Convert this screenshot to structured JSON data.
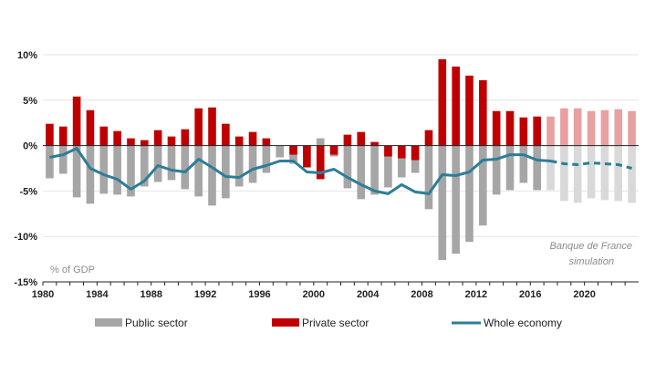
{
  "chart_data": {
    "type": "bar",
    "unit_label": "% of GDP",
    "annotation_lines": [
      "Banque de France",
      "simulation"
    ],
    "x": [
      1980,
      1981,
      1982,
      1983,
      1984,
      1985,
      1986,
      1987,
      1988,
      1989,
      1990,
      1991,
      1992,
      1993,
      1994,
      1995,
      1996,
      1997,
      1998,
      1999,
      2000,
      2001,
      2002,
      2003,
      2004,
      2005,
      2006,
      2007,
      2008,
      2009,
      2010,
      2011,
      2012,
      2013,
      2014,
      2015,
      2016,
      2017,
      2018,
      2019,
      2020,
      2021,
      2022,
      2023
    ],
    "x_ticks": [
      "1980",
      "1984",
      "1988",
      "1992",
      "1996",
      "2000",
      "2004",
      "2008",
      "2012",
      "2016",
      "2020"
    ],
    "x_tick_years": [
      1980,
      1984,
      1988,
      1992,
      1996,
      2000,
      2004,
      2008,
      2012,
      2016,
      2020
    ],
    "ylim": [
      -15,
      10
    ],
    "y_ticks": [
      10,
      5,
      0,
      -5,
      -10,
      -15
    ],
    "y_tick_labels": [
      "10%",
      "5%",
      "0%",
      "-5%",
      "-10%",
      "-15%"
    ],
    "simulation_start": 2017,
    "series": [
      {
        "name": "Public sector",
        "kind": "bar",
        "color": "#a6a6a6",
        "simulation_color": "#d9d9d9",
        "values": [
          -3.6,
          -3.1,
          -5.7,
          -6.4,
          -5.3,
          -5.4,
          -5.6,
          -4.5,
          -4.0,
          -3.8,
          -4.8,
          -5.6,
          -6.6,
          -5.8,
          -4.5,
          -4.1,
          -3.0,
          -1.3,
          -2.0,
          -1.0,
          0.8,
          -1.2,
          -4.7,
          -5.9,
          -5.4,
          -4.6,
          -3.5,
          -3.0,
          -7.0,
          -12.6,
          -11.9,
          -10.6,
          -8.8,
          -5.4,
          -4.9,
          -4.1,
          -4.9,
          -4.9,
          -6.1,
          -6.3,
          -5.8,
          -6.0,
          -6.1,
          -6.3
        ]
      },
      {
        "name": "Private sector",
        "kind": "bar",
        "color": "#c00000",
        "simulation_color": "#e8a0a0",
        "values": [
          2.4,
          2.1,
          5.4,
          3.9,
          2.1,
          1.6,
          0.8,
          0.6,
          1.7,
          1.0,
          1.8,
          4.1,
          4.2,
          2.4,
          1.0,
          1.5,
          0.8,
          0,
          -1.0,
          -2.4,
          -3.7,
          -1.0,
          1.2,
          1.5,
          0.4,
          -1.2,
          -1.4,
          -1.6,
          1.7,
          9.5,
          8.7,
          7.7,
          7.2,
          3.8,
          3.8,
          3.1,
          3.2,
          3.2,
          4.1,
          4.1,
          3.8,
          3.9,
          4.0,
          3.8
        ]
      },
      {
        "name": "Whole economy",
        "kind": "line",
        "color": "#2e7d96",
        "values": [
          -1.3,
          -1.0,
          -0.3,
          -2.5,
          -3.2,
          -3.7,
          -4.8,
          -3.9,
          -2.2,
          -2.7,
          -2.9,
          -1.5,
          -2.4,
          -3.4,
          -3.5,
          -2.6,
          -2.2,
          -1.7,
          -1.7,
          -2.9,
          -3.0,
          -2.6,
          -3.5,
          -4.3,
          -5.0,
          -5.3,
          -4.3,
          -5.1,
          -5.3,
          -3.2,
          -3.3,
          -2.9,
          -1.6,
          -1.5,
          -1.0,
          -1.0,
          -1.6,
          -1.7,
          -2.0,
          -2.1,
          -1.9,
          -2.0,
          -2.1,
          -2.5
        ]
      }
    ],
    "legend": {
      "placement": "bottom",
      "entries": [
        {
          "label": "Public sector",
          "swatch": "bar",
          "color": "#a6a6a6"
        },
        {
          "label": "Private sector",
          "swatch": "bar",
          "color": "#c00000"
        },
        {
          "label": "Whole economy",
          "swatch": "line",
          "color": "#2e7d96"
        }
      ]
    }
  }
}
